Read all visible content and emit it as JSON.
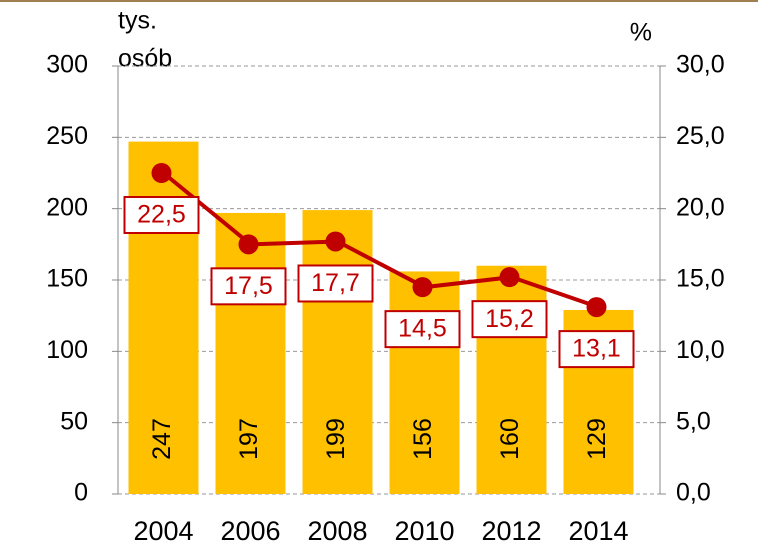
{
  "chart_data": {
    "type": "bar_line",
    "ylabel": [
      "tys.",
      "osób"
    ],
    "y2label": "%",
    "categories": [
      "2004",
      "2006",
      "2008",
      "2010",
      "2012",
      "2014"
    ],
    "series": [
      {
        "type": "bar",
        "color": "#ffc000",
        "values": [
          247,
          197,
          199,
          156,
          160,
          129
        ]
      },
      {
        "type": "line",
        "axis": "y2",
        "color": "#c00000",
        "values": [
          22.5,
          17.5,
          17.7,
          14.5,
          15.2,
          13.1
        ],
        "value_labels": [
          "22,5",
          "17,5",
          "17,7",
          "14,5",
          "15,2",
          "13,1"
        ]
      }
    ],
    "ylim": [
      0,
      300
    ],
    "yticks": [
      0,
      50,
      100,
      150,
      200,
      250,
      300
    ],
    "y2lim": [
      0,
      30
    ],
    "y2ticks": [
      {
        "value": 0,
        "label": "0,0"
      },
      {
        "value": 5,
        "label": "5,0"
      },
      {
        "value": 10,
        "label": "10,0"
      },
      {
        "value": 15,
        "label": "15,0"
      },
      {
        "value": 20,
        "label": "20,0"
      },
      {
        "value": 25,
        "label": "25,0"
      },
      {
        "value": 30,
        "label": "30,0"
      }
    ],
    "grid": true
  }
}
